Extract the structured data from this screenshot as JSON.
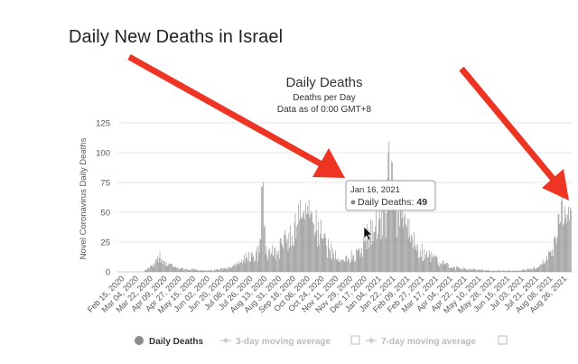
{
  "page": {
    "heading": "Daily New Deaths in Israel"
  },
  "chart_data": {
    "type": "bar",
    "title": "Daily Deaths",
    "subtitle_line1": "Deaths per Day",
    "subtitle_line2": "Data as of 0:00 GMT+8",
    "ylabel": "Novel Coronavirus Daily Deaths",
    "ylim": [
      0,
      125
    ],
    "yticks": [
      0,
      25,
      50,
      75,
      100,
      125
    ],
    "grid": true,
    "x_range": [
      "2020-02-15",
      "2021-09-05"
    ],
    "x_tick_labels": [
      "Feb 15, 2020",
      "Mar 04, 2020",
      "Mar 22, 2020",
      "Apr 09, 2020",
      "Apr 27, 2020",
      "May 15, 2020",
      "Jun 02, 2020",
      "Jun 20, 2020",
      "Jul 08, 2020",
      "Jul 26, 2020",
      "Aug 13, 2020",
      "Aug 31, 2020",
      "Sep 18, 2020",
      "Oct 06, 2020",
      "Oct 24, 2020",
      "Nov 11, 2020",
      "Nov 29, 2020",
      "Dec 17, 2020",
      "Jan 04, 2021",
      "Jan 22, 2021",
      "Feb 09, 2021",
      "Feb 27, 2021",
      "Mar 17, 2021",
      "Apr 04, 2021",
      "Apr 22, 2021",
      "May 10, 2021",
      "May 28, 2021",
      "Jun 15, 2021",
      "Jul 03, 2021",
      "Jul 21, 2021",
      "Aug 08, 2021",
      "Aug 26, 2021"
    ],
    "series": [
      {
        "name": "Daily Deaths",
        "points": [
          [
            "2020-03-20",
            1
          ],
          [
            "2020-03-26",
            3
          ],
          [
            "2020-04-01",
            6
          ],
          [
            "2020-04-04",
            10
          ],
          [
            "2020-04-07",
            12
          ],
          [
            "2020-04-10",
            11
          ],
          [
            "2020-04-13",
            9
          ],
          [
            "2020-04-16",
            8
          ],
          [
            "2020-04-20",
            7
          ],
          [
            "2020-04-24",
            5
          ],
          [
            "2020-04-28",
            4
          ],
          [
            "2020-05-04",
            3
          ],
          [
            "2020-05-10",
            2
          ],
          [
            "2020-05-20",
            2
          ],
          [
            "2020-06-01",
            1
          ],
          [
            "2020-06-20",
            2
          ],
          [
            "2020-07-01",
            3
          ],
          [
            "2020-07-10",
            6
          ],
          [
            "2020-07-18",
            8
          ],
          [
            "2020-07-26",
            12
          ],
          [
            "2020-08-03",
            14
          ],
          [
            "2020-08-10",
            16
          ],
          [
            "2020-08-14",
            72
          ],
          [
            "2020-08-18",
            15
          ],
          [
            "2020-08-25",
            16
          ],
          [
            "2020-09-01",
            17
          ],
          [
            "2020-09-08",
            22
          ],
          [
            "2020-09-14",
            28
          ],
          [
            "2020-09-20",
            30
          ],
          [
            "2020-09-26",
            38
          ],
          [
            "2020-10-01",
            45
          ],
          [
            "2020-10-05",
            52
          ],
          [
            "2020-10-09",
            55
          ],
          [
            "2020-10-13",
            48
          ],
          [
            "2020-10-17",
            40
          ],
          [
            "2020-10-21",
            35
          ],
          [
            "2020-10-25",
            32
          ],
          [
            "2020-10-29",
            28
          ],
          [
            "2020-11-02",
            22
          ],
          [
            "2020-11-06",
            18
          ],
          [
            "2020-11-11",
            15
          ],
          [
            "2020-11-16",
            12
          ],
          [
            "2020-11-22",
            10
          ],
          [
            "2020-11-29",
            12
          ],
          [
            "2020-12-05",
            14
          ],
          [
            "2020-12-12",
            18
          ],
          [
            "2020-12-19",
            25
          ],
          [
            "2020-12-26",
            30
          ],
          [
            "2021-01-02",
            38
          ],
          [
            "2021-01-08",
            45
          ],
          [
            "2021-01-12",
            55
          ],
          [
            "2021-01-16",
            49
          ],
          [
            "2021-01-18",
            100
          ],
          [
            "2021-01-20",
            60
          ],
          [
            "2021-01-23",
            92
          ],
          [
            "2021-01-26",
            55
          ],
          [
            "2021-01-30",
            50
          ],
          [
            "2021-02-04",
            45
          ],
          [
            "2021-02-09",
            40
          ],
          [
            "2021-02-14",
            30
          ],
          [
            "2021-02-20",
            22
          ],
          [
            "2021-02-27",
            18
          ],
          [
            "2021-03-06",
            15
          ],
          [
            "2021-03-14",
            12
          ],
          [
            "2021-03-22",
            8
          ],
          [
            "2021-03-30",
            6
          ],
          [
            "2021-04-08",
            4
          ],
          [
            "2021-04-18",
            3
          ],
          [
            "2021-04-28",
            2
          ],
          [
            "2021-05-10",
            2
          ],
          [
            "2021-05-25",
            1
          ],
          [
            "2021-06-10",
            1
          ],
          [
            "2021-06-30",
            1
          ],
          [
            "2021-07-10",
            2
          ],
          [
            "2021-07-18",
            3
          ],
          [
            "2021-07-26",
            5
          ],
          [
            "2021-08-03",
            10
          ],
          [
            "2021-08-09",
            18
          ],
          [
            "2021-08-15",
            28
          ],
          [
            "2021-08-21",
            42
          ],
          [
            "2021-08-26",
            55
          ],
          [
            "2021-08-30",
            48
          ],
          [
            "2021-09-03",
            52
          ]
        ]
      }
    ],
    "legend": {
      "placement": "bottom",
      "items": [
        {
          "label": "Daily Deaths",
          "color": "#8a8a8a",
          "active": true
        },
        {
          "label": "3-day moving average",
          "color": "#cfcfcf",
          "active": false
        },
        {
          "label": "7-day moving average",
          "color": "#cfcfcf",
          "active": false
        }
      ]
    },
    "tooltip": {
      "date": "Jan 16, 2021",
      "series_label": "Daily Deaths:",
      "value": "49"
    },
    "colors": {
      "bar": "#8c8c8c",
      "grid": "#e6e6e6",
      "arrow": "#ee3524"
    }
  }
}
